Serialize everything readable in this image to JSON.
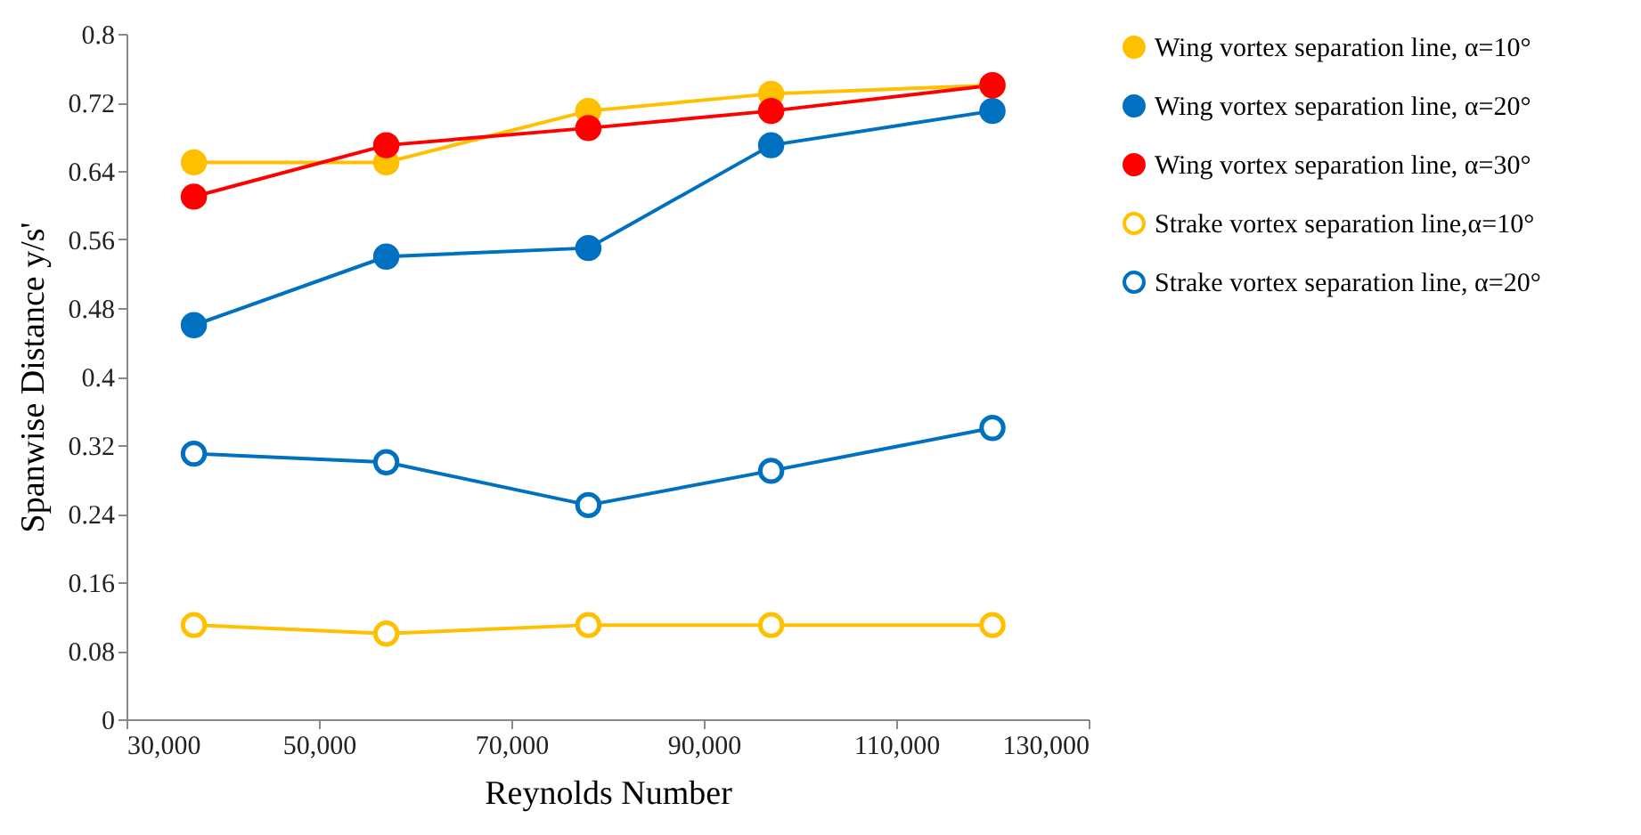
{
  "chart_data": {
    "type": "line",
    "xlabel": "Reynolds Number",
    "ylabel": "Spanwise Distance y/s'",
    "x": [
      37000,
      57000,
      78000,
      97000,
      120000
    ],
    "xlim": [
      30000,
      130000
    ],
    "xticks": [
      {
        "value": 30000,
        "label": "30,000"
      },
      {
        "value": 50000,
        "label": "50,000"
      },
      {
        "value": 70000,
        "label": "70,000"
      },
      {
        "value": 90000,
        "label": "90,000"
      },
      {
        "value": 110000,
        "label": "110,000"
      },
      {
        "value": 130000,
        "label": "130,000"
      }
    ],
    "ylim": [
      0,
      0.8
    ],
    "yticks": [
      0,
      0.08,
      0.16,
      0.24,
      0.32,
      0.4,
      0.48,
      0.56,
      0.64,
      0.72,
      0.8
    ],
    "grid": false,
    "legend": "right",
    "line_style": "solid",
    "series": [
      {
        "name": "Wing vortex separation line, α=10°",
        "color": "#ffc000",
        "marker": "circle",
        "values": [
          0.65,
          0.65,
          0.71,
          0.73,
          0.74
        ]
      },
      {
        "name": "Wing vortex separation line, α=20°",
        "color": "#0070c0",
        "marker": "circle",
        "values": [
          0.46,
          0.54,
          0.55,
          0.67,
          0.71
        ]
      },
      {
        "name": "Wing vortex separation line, α=30°",
        "color": "#ff0000",
        "marker": "circle",
        "values": [
          0.61,
          0.67,
          0.69,
          0.71,
          0.74
        ]
      },
      {
        "name": "Strake vortex separation line,α=10°",
        "color": "#ffc000",
        "marker": "circle-open",
        "values": [
          0.11,
          0.1,
          0.11,
          0.11,
          0.11
        ]
      },
      {
        "name": "Strake vortex separation line, α=20°",
        "color": "#0070c0",
        "marker": "circle-open",
        "values": [
          0.31,
          0.3,
          0.25,
          0.29,
          0.34
        ]
      }
    ]
  }
}
